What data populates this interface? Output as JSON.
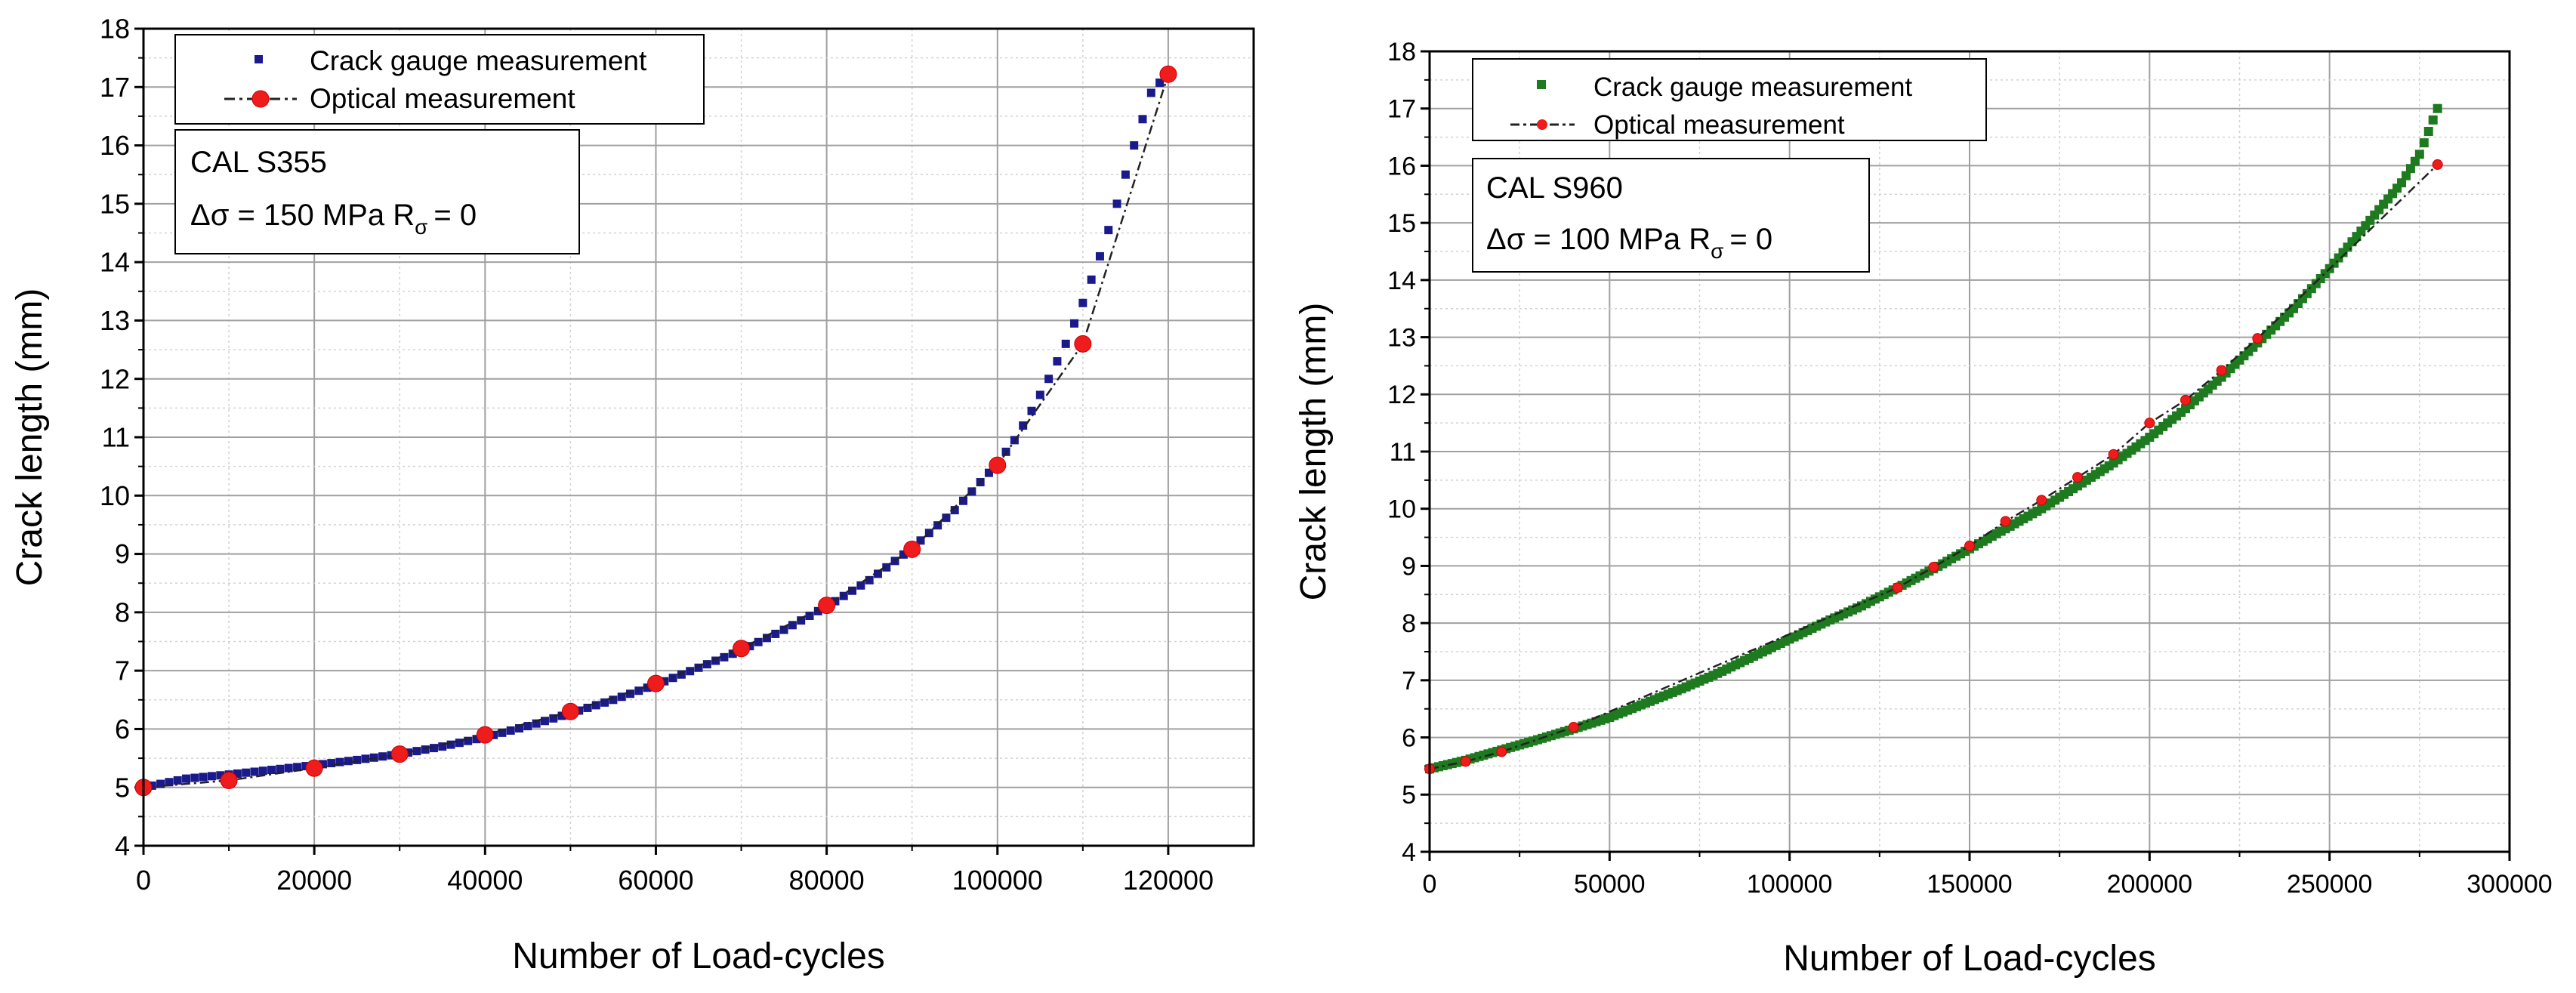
{
  "chart_data": [
    {
      "type": "scatter",
      "panel": "left",
      "title": "",
      "xlabel": "Number of Load-cycles",
      "ylabel": "Crack length (mm)",
      "xlim": [
        0,
        130000
      ],
      "ylim": [
        4,
        18
      ],
      "xticks": [
        0,
        20000,
        40000,
        60000,
        80000,
        100000,
        120000
      ],
      "xtick_labels": [
        "0",
        "20000",
        "40000",
        "60000",
        "80000",
        "100000",
        "120000"
      ],
      "yticks": [
        4,
        5,
        6,
        7,
        8,
        9,
        10,
        11,
        12,
        13,
        14,
        15,
        16,
        17,
        18
      ],
      "ytick_labels": [
        "4",
        "5",
        "6",
        "7",
        "8",
        "9",
        "10",
        "11",
        "12",
        "13",
        "14",
        "15",
        "16",
        "17",
        "18"
      ],
      "grid": true,
      "legend_position": "top-left",
      "annotation": {
        "line1": "CAL S355",
        "line2_prefix": "Δσ = 150 MPa R",
        "line2_sub": "σ",
        "line2_suffix": "= 0"
      },
      "series": [
        {
          "name": "Crack gauge measurement",
          "style": "square-markers",
          "color": "#1a1a8c",
          "x": [
            0,
            5000,
            10000,
            15000,
            20000,
            25000,
            30000,
            35000,
            40000,
            45000,
            50000,
            55000,
            60000,
            65000,
            70000,
            75000,
            80000,
            85000,
            90000,
            95000,
            100000,
            102000,
            104000,
            106000,
            108000,
            110000,
            112000,
            114000,
            116000,
            118000,
            120000
          ],
          "y": [
            5.0,
            5.15,
            5.22,
            5.3,
            5.38,
            5.47,
            5.57,
            5.7,
            5.86,
            6.05,
            6.27,
            6.5,
            6.76,
            7.05,
            7.35,
            7.7,
            8.1,
            8.55,
            9.1,
            9.75,
            10.55,
            10.95,
            11.45,
            12.0,
            12.6,
            13.3,
            14.1,
            15.0,
            16.0,
            16.9,
            17.25
          ]
        },
        {
          "name": "Optical measurement",
          "style": "dash-dot-line-with-circles",
          "color": "#ee1c1c",
          "x": [
            0,
            10000,
            20000,
            30000,
            40000,
            50000,
            60000,
            70000,
            80000,
            90000,
            100000,
            110000,
            120000
          ],
          "y": [
            5.0,
            5.12,
            5.33,
            5.57,
            5.9,
            6.3,
            6.78,
            7.38,
            8.12,
            9.08,
            10.52,
            12.6,
            17.22
          ]
        }
      ]
    },
    {
      "type": "scatter",
      "panel": "right",
      "title": "",
      "xlabel": "Number of Load-cycles",
      "ylabel": "Crack length (mm)",
      "xlim": [
        0,
        300000
      ],
      "ylim": [
        4,
        18
      ],
      "xticks": [
        0,
        50000,
        100000,
        150000,
        200000,
        250000,
        300000
      ],
      "xtick_labels": [
        "0",
        "50000",
        "100000",
        "150000",
        "200000",
        "250000",
        "300000"
      ],
      "yticks": [
        4,
        5,
        6,
        7,
        8,
        9,
        10,
        11,
        12,
        13,
        14,
        15,
        16,
        17,
        18
      ],
      "ytick_labels": [
        "4",
        "5",
        "6",
        "7",
        "8",
        "9",
        "10",
        "11",
        "12",
        "13",
        "14",
        "15",
        "16",
        "17",
        "18"
      ],
      "grid": true,
      "legend_position": "top-left",
      "annotation": {
        "line1": "CAL S960",
        "line2_prefix": "Δσ = 100 MPa R",
        "line2_sub": "σ",
        "line2_suffix": "= 0"
      },
      "series": [
        {
          "name": "Crack gauge measurement",
          "style": "square-markers",
          "color": "#1e7a1e",
          "x": [
            0,
            10000,
            20000,
            30000,
            40000,
            50000,
            60000,
            70000,
            80000,
            90000,
            100000,
            110000,
            120000,
            130000,
            140000,
            150000,
            160000,
            170000,
            180000,
            190000,
            200000,
            210000,
            220000,
            230000,
            240000,
            250000,
            260000,
            270000,
            275000,
            280000
          ],
          "y": [
            5.45,
            5.6,
            5.78,
            5.96,
            6.15,
            6.35,
            6.6,
            6.85,
            7.12,
            7.42,
            7.72,
            8.02,
            8.3,
            8.62,
            8.95,
            9.3,
            9.65,
            10.0,
            10.4,
            10.8,
            11.25,
            11.75,
            12.3,
            12.9,
            13.5,
            14.2,
            14.95,
            15.7,
            16.2,
            17.0
          ]
        },
        {
          "name": "Optical measurement",
          "style": "dash-dot-line-with-circles",
          "color": "#ee1c1c",
          "x": [
            0,
            10000,
            20000,
            40000,
            130000,
            140000,
            150000,
            160000,
            170000,
            180000,
            190000,
            200000,
            210000,
            220000,
            230000,
            280000
          ],
          "y": [
            5.45,
            5.58,
            5.75,
            6.18,
            8.62,
            8.98,
            9.35,
            9.78,
            10.15,
            10.55,
            10.95,
            11.5,
            11.9,
            12.42,
            12.98,
            16.02
          ]
        }
      ]
    }
  ]
}
